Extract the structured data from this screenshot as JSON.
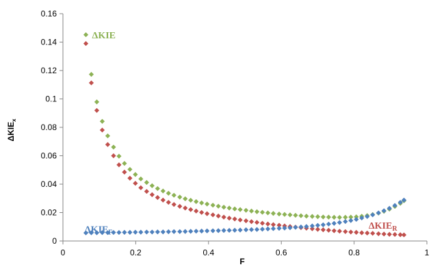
{
  "chart_data": {
    "type": "scatter",
    "xlabel": "F",
    "ylabel": "ΔKIE",
    "ylabel_sub": "x",
    "xlim": [
      0,
      1
    ],
    "ylim": [
      0,
      0.16
    ],
    "xticks": [
      "0",
      "0.2",
      "0.4",
      "0.6",
      "0.8",
      "1"
    ],
    "yticks": [
      "0",
      "0.02",
      "0.04",
      "0.06",
      "0.08",
      "0.1",
      "0.12",
      "0.14",
      "0.16"
    ],
    "grid": false,
    "legend": "none",
    "series": [
      {
        "name": "ΔKIE",
        "label_main": "ΔKIE",
        "label_sub": "",
        "color": "#8DB255",
        "marker": "diamond-icon",
        "label_at": [
          0.08,
          0.145
        ],
        "x": [
          0.063,
          0.078,
          0.093,
          0.108,
          0.123,
          0.139,
          0.154,
          0.169,
          0.184,
          0.199,
          0.214,
          0.23,
          0.245,
          0.26,
          0.275,
          0.29,
          0.305,
          0.321,
          0.336,
          0.351,
          0.366,
          0.381,
          0.396,
          0.412,
          0.427,
          0.442,
          0.457,
          0.472,
          0.487,
          0.503,
          0.518,
          0.533,
          0.548,
          0.563,
          0.578,
          0.594,
          0.609,
          0.624,
          0.639,
          0.654,
          0.669,
          0.685,
          0.7,
          0.715,
          0.73,
          0.745,
          0.76,
          0.776,
          0.791,
          0.806,
          0.821,
          0.836,
          0.851,
          0.867,
          0.882,
          0.897,
          0.912,
          0.927,
          0.937
        ],
        "y": [
          0.1452,
          0.1173,
          0.0979,
          0.0842,
          0.074,
          0.0661,
          0.0597,
          0.0546,
          0.0504,
          0.0468,
          0.0437,
          0.0412,
          0.0389,
          0.0369,
          0.0352,
          0.0336,
          0.0322,
          0.0309,
          0.0297,
          0.0287,
          0.0277,
          0.0268,
          0.026,
          0.0252,
          0.0245,
          0.0238,
          0.0232,
          0.0226,
          0.0221,
          0.0216,
          0.0211,
          0.0206,
          0.0202,
          0.0198,
          0.0194,
          0.019,
          0.0187,
          0.0184,
          0.0181,
          0.0178,
          0.0175,
          0.0173,
          0.0171,
          0.0169,
          0.0168,
          0.0167,
          0.0166,
          0.0167,
          0.0168,
          0.017,
          0.0174,
          0.0179,
          0.0186,
          0.0196,
          0.0209,
          0.0224,
          0.0243,
          0.0265,
          0.0283
        ]
      },
      {
        "name": "ΔKIE_R",
        "label_main": "ΔKIE",
        "label_sub": "R",
        "color": "#C0504D",
        "marker": "diamond-icon",
        "label_at": [
          0.84,
          0.0112
        ],
        "x": [
          0.063,
          0.078,
          0.093,
          0.108,
          0.123,
          0.139,
          0.154,
          0.169,
          0.184,
          0.199,
          0.214,
          0.23,
          0.245,
          0.26,
          0.275,
          0.29,
          0.305,
          0.321,
          0.336,
          0.351,
          0.366,
          0.381,
          0.396,
          0.412,
          0.427,
          0.442,
          0.457,
          0.472,
          0.487,
          0.503,
          0.518,
          0.533,
          0.548,
          0.563,
          0.578,
          0.594,
          0.609,
          0.624,
          0.639,
          0.654,
          0.669,
          0.685,
          0.7,
          0.715,
          0.73,
          0.745,
          0.76,
          0.776,
          0.791,
          0.806,
          0.821,
          0.836,
          0.851,
          0.867,
          0.882,
          0.897,
          0.912,
          0.927,
          0.937
        ],
        "y": [
          0.139,
          0.1113,
          0.0919,
          0.0781,
          0.0679,
          0.06,
          0.0536,
          0.0485,
          0.0442,
          0.0406,
          0.0375,
          0.0349,
          0.0326,
          0.0306,
          0.0288,
          0.0272,
          0.0257,
          0.0244,
          0.0232,
          0.0221,
          0.0211,
          0.0201,
          0.0192,
          0.0184,
          0.0176,
          0.0168,
          0.0161,
          0.0155,
          0.0148,
          0.0142,
          0.0136,
          0.0131,
          0.0125,
          0.012,
          0.0115,
          0.0111,
          0.0106,
          0.0102,
          0.0098,
          0.0094,
          0.009,
          0.0086,
          0.0082,
          0.0079,
          0.0076,
          0.0072,
          0.0069,
          0.0066,
          0.0063,
          0.0061,
          0.0058,
          0.0056,
          0.0054,
          0.0051,
          0.0049,
          0.0047,
          0.0046,
          0.0044,
          0.0043
        ]
      },
      {
        "name": "ΔKIE_F",
        "label_main": "ΔKIE",
        "label_sub": "F",
        "color": "#4F81BD",
        "marker": "diamond-icon",
        "label_at": [
          0.06,
          0.0085
        ],
        "x": [
          0.063,
          0.078,
          0.093,
          0.108,
          0.123,
          0.139,
          0.154,
          0.169,
          0.184,
          0.199,
          0.214,
          0.23,
          0.245,
          0.26,
          0.275,
          0.29,
          0.305,
          0.321,
          0.336,
          0.351,
          0.366,
          0.381,
          0.396,
          0.412,
          0.427,
          0.442,
          0.457,
          0.472,
          0.487,
          0.503,
          0.518,
          0.533,
          0.548,
          0.563,
          0.578,
          0.594,
          0.609,
          0.624,
          0.639,
          0.654,
          0.669,
          0.685,
          0.7,
          0.715,
          0.73,
          0.745,
          0.76,
          0.776,
          0.791,
          0.806,
          0.821,
          0.836,
          0.851,
          0.867,
          0.882,
          0.897,
          0.912,
          0.927,
          0.937
        ],
        "y": [
          0.0057,
          0.0058,
          0.0058,
          0.0059,
          0.0059,
          0.006,
          0.006,
          0.0061,
          0.0061,
          0.0062,
          0.0062,
          0.0063,
          0.0063,
          0.0064,
          0.0064,
          0.0065,
          0.0066,
          0.0066,
          0.0067,
          0.0068,
          0.0069,
          0.007,
          0.0071,
          0.0072,
          0.0073,
          0.0074,
          0.0075,
          0.0076,
          0.0077,
          0.0079,
          0.008,
          0.0081,
          0.0083,
          0.0085,
          0.0087,
          0.0089,
          0.0091,
          0.0093,
          0.0096,
          0.0099,
          0.0102,
          0.0106,
          0.011,
          0.0114,
          0.0119,
          0.0124,
          0.013,
          0.0137,
          0.0144,
          0.0152,
          0.0162,
          0.0172,
          0.0184,
          0.0198,
          0.0213,
          0.023,
          0.025,
          0.0272,
          0.0288
        ]
      }
    ]
  }
}
